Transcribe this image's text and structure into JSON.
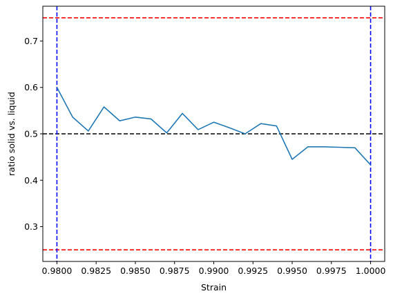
{
  "chart_data": {
    "type": "line",
    "title": "",
    "xlabel": "Strain",
    "ylabel": "ratio solid vs. liquid",
    "xlim": [
      0.9791,
      1.0009
    ],
    "ylim": [
      0.225,
      0.775
    ],
    "grid": false,
    "legend": "none",
    "x_ticks": [
      {
        "value": 0.98,
        "label": "0.9800"
      },
      {
        "value": 0.9825,
        "label": "0.9825"
      },
      {
        "value": 0.985,
        "label": "0.9850"
      },
      {
        "value": 0.9875,
        "label": "0.9875"
      },
      {
        "value": 0.99,
        "label": "0.9900"
      },
      {
        "value": 0.9925,
        "label": "0.9925"
      },
      {
        "value": 0.995,
        "label": "0.9950"
      },
      {
        "value": 0.9975,
        "label": "0.9975"
      },
      {
        "value": 1.0,
        "label": "1.0000"
      }
    ],
    "y_ticks": [
      {
        "value": 0.3,
        "label": "0.3"
      },
      {
        "value": 0.4,
        "label": "0.4"
      },
      {
        "value": 0.5,
        "label": "0.5"
      },
      {
        "value": 0.6,
        "label": "0.6"
      },
      {
        "value": 0.7,
        "label": "0.7"
      }
    ],
    "series": [
      {
        "color": "#1f77b4",
        "x": [
          0.98,
          0.981,
          0.982,
          0.983,
          0.984,
          0.985,
          0.986,
          0.987,
          0.988,
          0.989,
          0.99,
          0.991,
          0.992,
          0.993,
          0.994,
          0.995,
          0.996,
          0.997,
          0.998,
          0.999,
          1.0
        ],
        "y": [
          0.6,
          0.536,
          0.506,
          0.558,
          0.528,
          0.536,
          0.532,
          0.502,
          0.544,
          0.509,
          0.525,
          0.513,
          0.5,
          0.522,
          0.517,
          0.445,
          0.472,
          0.472,
          0.471,
          0.47,
          0.433
        ]
      }
    ],
    "reference_lines": [
      {
        "orientation": "horizontal",
        "value": 0.75,
        "color": "#ff0000",
        "style": "dashed"
      },
      {
        "orientation": "horizontal",
        "value": 0.25,
        "color": "#ff0000",
        "style": "dashed"
      },
      {
        "orientation": "horizontal",
        "value": 0.5,
        "color": "#000000",
        "style": "dashed"
      },
      {
        "orientation": "vertical",
        "value": 0.98,
        "color": "#0000ff",
        "style": "dashed"
      },
      {
        "orientation": "vertical",
        "value": 1.0,
        "color": "#0000ff",
        "style": "dashed"
      }
    ]
  }
}
